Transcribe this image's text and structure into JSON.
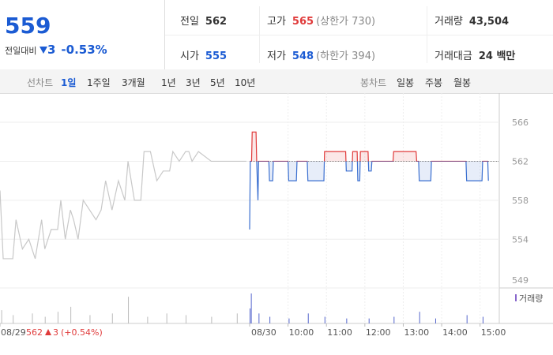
{
  "quote": {
    "price": "559",
    "change_label": "전일대비",
    "change": "3",
    "change_rate": "-0.53%",
    "stats": [
      {
        "label": "전일",
        "value": "562"
      },
      {
        "label": "고가",
        "value": "565",
        "note": "(상한가 730)"
      },
      {
        "label": "거래량",
        "value": "43,504"
      },
      {
        "label": "시가",
        "value": "555"
      },
      {
        "label": "저가",
        "value": "548",
        "note": "(하한가 394)"
      },
      {
        "label": "거래대금",
        "value": "24 백만"
      }
    ]
  },
  "line_tabs": {
    "label": "선차트",
    "items": [
      "1일",
      "1주일",
      "3개월",
      "1년",
      "3년",
      "5년",
      "10년"
    ]
  },
  "candle_tabs": {
    "label": "봉차트",
    "items": [
      "일봉",
      "주봉",
      "월봉"
    ]
  },
  "prev_day": {
    "close": "562",
    "change": "3",
    "rate": "(+0.54%)"
  },
  "chart_data": {
    "type": "line",
    "xlim": [
      -390,
      390
    ],
    "xticks": [
      {
        "value": -390,
        "label": "08/29"
      },
      {
        "value": 0,
        "label": "08/30"
      },
      {
        "value": 60,
        "label": "10:00"
      },
      {
        "value": 120,
        "label": "11:00"
      },
      {
        "value": 180,
        "label": "12:00"
      },
      {
        "value": 240,
        "label": "13:00"
      },
      {
        "value": 300,
        "label": "14:00"
      },
      {
        "value": 360,
        "label": "15:00"
      }
    ],
    "ylim": [
      549,
      569
    ],
    "yticks": [
      566,
      562,
      558,
      554,
      549
    ],
    "reference": 562,
    "series": [
      {
        "name": "08/29",
        "color": "#c8c8c8",
        "x": [
          -390,
          -385,
          -370,
          -365,
          -355,
          -345,
          -340,
          -335,
          -325,
          -320,
          -310,
          -300,
          -295,
          -288,
          -280,
          -275,
          -268,
          -260,
          -250,
          -240,
          -232,
          -225,
          -215,
          -205,
          -195,
          -190,
          -180,
          -170,
          -165,
          -155,
          -145,
          -135,
          -125,
          -120,
          -110,
          -100,
          -95,
          -90,
          -80,
          -60,
          -30,
          -5
        ],
        "values": [
          559,
          552,
          552,
          556,
          553,
          554,
          553,
          552,
          556,
          553,
          555,
          555,
          558,
          554,
          557,
          556,
          554,
          558,
          557,
          556,
          557,
          560,
          557,
          560,
          558,
          562,
          558,
          558,
          563,
          563,
          560,
          561,
          561,
          563,
          562,
          563,
          563,
          562,
          563,
          562,
          562,
          562
        ]
      },
      {
        "name": "08/30",
        "color": "#3a6fd0",
        "color_up": "#e03b3b",
        "x": [
          0,
          1,
          3,
          4,
          10,
          11,
          13,
          14,
          30,
          31,
          36,
          37,
          60,
          61,
          73,
          74,
          90,
          91,
          116,
          117,
          150,
          151,
          160,
          161,
          168,
          169,
          172,
          173,
          185,
          186,
          190,
          191,
          224,
          225,
          260,
          261,
          264,
          265,
          283,
          284,
          338,
          339,
          363,
          364,
          372,
          373
        ],
        "values": [
          555,
          562,
          562,
          565,
          565,
          562,
          558,
          562,
          562,
          560,
          560,
          562,
          562,
          560,
          560,
          562,
          562,
          560,
          560,
          563,
          563,
          561,
          561,
          563,
          563,
          560,
          560,
          563,
          563,
          561,
          561,
          562,
          562,
          563,
          563,
          562,
          562,
          560,
          560,
          562,
          562,
          560,
          560,
          562,
          562,
          560
        ]
      }
    ],
    "volume": {
      "name": "거래량",
      "x": [
        -388,
        -370,
        -340,
        -320,
        -300,
        -280,
        -250,
        -215,
        -190,
        -160,
        -130,
        -100,
        -60,
        -20,
        0,
        2,
        14,
        31,
        61,
        91,
        117,
        151,
        186,
        225,
        265,
        290,
        339,
        364
      ],
      "values": [
        4000,
        2500,
        3000,
        2000,
        3500,
        5000,
        2500,
        3000,
        8000,
        2000,
        3000,
        2500,
        2000,
        3000,
        4500,
        9000,
        3000,
        2000,
        1500,
        3000,
        2000,
        1500,
        1500,
        2000,
        3500,
        1500,
        2500,
        2000
      ]
    }
  }
}
